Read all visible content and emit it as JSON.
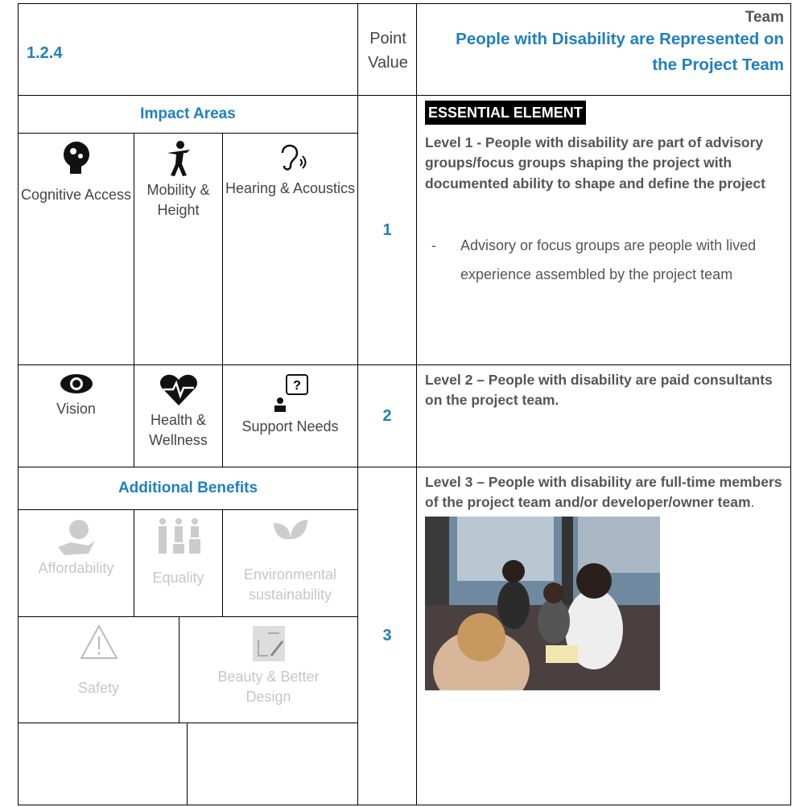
{
  "header": {
    "code": "1.2.4",
    "point_label": "Point Value",
    "category": "Team",
    "title": "People with Disability are Represented on the Project Team"
  },
  "impact_areas": {
    "title": "Impact Areas",
    "items": [
      "Cognitive Access",
      "Mobility & Height",
      "Hearing & Acoustics",
      "Vision",
      "Health & Wellness",
      "Support Needs"
    ]
  },
  "additional_benefits": {
    "title": "Additional Benefits",
    "items": [
      "Affordability",
      "Equality",
      "Environmental sustainability",
      "Safety",
      "Beauty & Better Design"
    ]
  },
  "levels": [
    {
      "points": 1,
      "badge": "ESSENTIAL ELEMENT",
      "text": "Level 1 - People with disability are part of advisory groups/focus groups shaping the project with documented ability to shape and define the project",
      "bullet": "Advisory or focus groups are people with lived experience assembled by the project team"
    },
    {
      "points": 2,
      "text": "Level 2 – People with disability are paid consultants on the project team."
    },
    {
      "points": 3,
      "text": "Level 3 – People with disability are full-time members of the project team and/or developer/owner team",
      "trailing": "."
    }
  ]
}
